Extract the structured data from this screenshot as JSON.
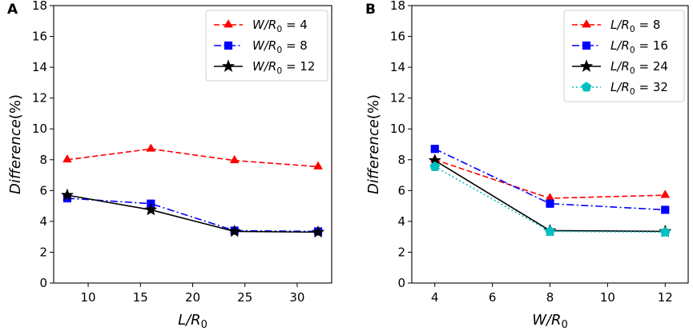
{
  "chart_data": [
    {
      "type": "line",
      "panel_label": "A",
      "xlabel": "L/R0",
      "ylabel": "Difference(%)",
      "xlim": [
        6.7,
        33.3
      ],
      "ylim": [
        0,
        18
      ],
      "xticks": [
        10,
        15,
        20,
        25,
        30
      ],
      "yticks": [
        0,
        2,
        4,
        6,
        8,
        10,
        12,
        14,
        16,
        18
      ],
      "grid": false,
      "legend_position": "top-right",
      "x": [
        8,
        16,
        24,
        32
      ],
      "series": [
        {
          "name": "W/R0 = 4",
          "label_var": "W",
          "label_value": "4",
          "color": "#ff0000",
          "dash": "dashed",
          "marker": "triangle",
          "values": [
            8.0,
            8.7,
            7.95,
            7.55
          ]
        },
        {
          "name": "W/R0 = 8",
          "label_var": "W",
          "label_value": "8",
          "color": "#0000ff",
          "dash": "dashdot",
          "marker": "square",
          "values": [
            5.5,
            5.15,
            3.4,
            3.35
          ]
        },
        {
          "name": "W/R0 = 12",
          "label_var": "W",
          "label_value": "12",
          "color": "#000000",
          "dash": "solid",
          "marker": "star",
          "values": [
            5.7,
            4.75,
            3.35,
            3.3
          ]
        }
      ]
    },
    {
      "type": "line",
      "panel_label": "B",
      "xlabel": "W/R0",
      "ylabel": "Difference(%)",
      "xlim": [
        3.2,
        12.8
      ],
      "ylim": [
        0,
        18
      ],
      "xticks": [
        4,
        6,
        8,
        10,
        12
      ],
      "yticks": [
        0,
        2,
        4,
        6,
        8,
        10,
        12,
        14,
        16,
        18
      ],
      "grid": false,
      "legend_position": "top-right",
      "x": [
        4,
        8,
        12
      ],
      "series": [
        {
          "name": "L/R0 = 8",
          "label_var": "L",
          "label_value": "8",
          "color": "#ff0000",
          "dash": "dashed",
          "marker": "triangle",
          "values": [
            8.0,
            5.5,
            5.7
          ]
        },
        {
          "name": "L/R0 = 16",
          "label_var": "L",
          "label_value": "16",
          "color": "#0000ff",
          "dash": "dashdot",
          "marker": "square",
          "values": [
            8.7,
            5.15,
            4.75
          ]
        },
        {
          "name": "L/R0 = 24",
          "label_var": "L",
          "label_value": "24",
          "color": "#000000",
          "dash": "solid",
          "marker": "star",
          "values": [
            7.95,
            3.4,
            3.35
          ]
        },
        {
          "name": "L/R0 = 32",
          "label_var": "L",
          "label_value": "32",
          "color": "#00bfbf",
          "dash": "dotted",
          "marker": "pentagon",
          "values": [
            7.55,
            3.35,
            3.3
          ]
        }
      ]
    }
  ]
}
